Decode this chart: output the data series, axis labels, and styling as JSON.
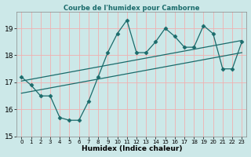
{
  "title": "Courbe de l'humidex pour Camborne",
  "xlabel": "Humidex (Indice chaleur)",
  "xlim": [
    -0.5,
    23.5
  ],
  "ylim": [
    15,
    19.6
  ],
  "yticks": [
    15,
    16,
    17,
    18,
    19
  ],
  "xticks": [
    0,
    1,
    2,
    3,
    4,
    5,
    6,
    7,
    8,
    9,
    10,
    11,
    12,
    13,
    14,
    15,
    16,
    17,
    18,
    19,
    20,
    21,
    22,
    23
  ],
  "bg_color": "#cce8e8",
  "line_color": "#1a6b6b",
  "grid_color": "#f0b0b0",
  "series1_x": [
    0,
    1,
    2,
    3,
    4,
    5,
    6,
    7,
    8,
    9,
    10,
    11,
    12,
    13,
    14,
    15,
    16,
    17,
    18,
    19,
    20,
    21,
    22,
    23
  ],
  "series1_y": [
    17.2,
    16.9,
    16.5,
    16.5,
    15.7,
    15.6,
    15.6,
    16.3,
    17.2,
    18.1,
    18.8,
    19.3,
    18.1,
    18.1,
    18.5,
    19.0,
    18.7,
    18.3,
    18.3,
    19.1,
    18.8,
    17.5,
    17.5,
    18.5
  ],
  "series2_x": [
    0,
    23
  ],
  "series2_y": [
    17.05,
    18.55
  ],
  "series3_x": [
    0,
    23
  ],
  "series3_y": [
    16.6,
    18.1
  ]
}
